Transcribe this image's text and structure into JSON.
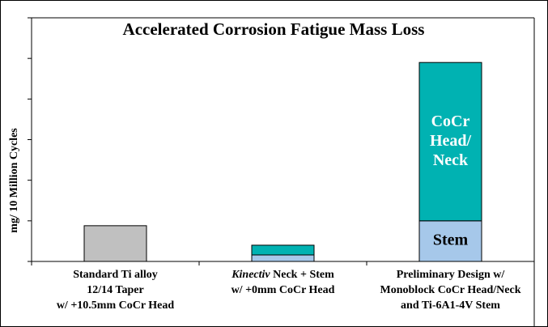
{
  "chart_data": {
    "type": "stacked_bar",
    "title": "Accelerated Corrosion Fatigue Mass Loss",
    "y_label": "mg/ 10 Million Cycles",
    "categories": [
      [
        "Standard Ti alloy",
        "12/14 Taper",
        "w/ +10.5mm CoCr Head"
      ],
      [
        "Kinectiv Neck + Stem",
        "w/ +0mm CoCr Head"
      ],
      [
        "Preliminary Design w/",
        "Monoblock CoCr Head/Neck",
        "and Ti-6A1-4V Stem"
      ]
    ],
    "series": [
      {
        "name": "Stem",
        "colors": [
          "#c0c0c0",
          "#a6c8ea",
          "#a6c8ea"
        ],
        "values": [
          0.88,
          0.16,
          1.0
        ]
      },
      {
        "name": "CoCr Head/ Neck",
        "color": "#00b2b2",
        "values": [
          null,
          0.24,
          3.9
        ]
      }
    ],
    "ylim": [
      0,
      6
    ],
    "yticks": [
      0,
      1,
      2,
      3,
      4,
      5,
      6
    ]
  }
}
